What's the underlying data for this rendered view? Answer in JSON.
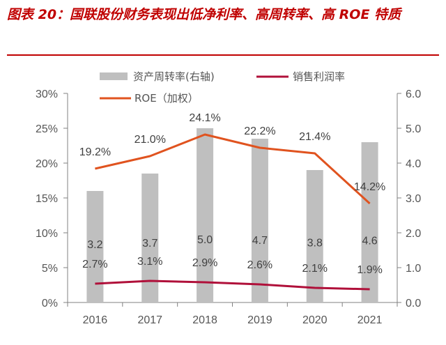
{
  "header": {
    "title": "图表 20：国联股份财务表现出低净利率、高周转率、高 ROE 特质"
  },
  "colors": {
    "title": "#c00000",
    "bars": "#bfbfbf",
    "roe_line": "#e0531f",
    "net_margin_line": "#b0103a",
    "axis": "#808080"
  },
  "chart_data": {
    "type": "bar+line",
    "categories": [
      "2016",
      "2017",
      "2018",
      "2019",
      "2020",
      "2021"
    ],
    "series": [
      {
        "name": "资产周转率(右轴)",
        "type": "bar",
        "axis": "right",
        "values": [
          3.2,
          3.7,
          5.0,
          4.7,
          3.8,
          4.6
        ],
        "labels": [
          "3.2",
          "3.7",
          "5.0",
          "4.7",
          "3.8",
          "4.6"
        ]
      },
      {
        "name": "销售利润率",
        "type": "line",
        "axis": "left",
        "values": [
          2.7,
          3.1,
          2.9,
          2.6,
          2.1,
          1.9
        ],
        "labels": [
          "2.7%",
          "3.1%",
          "2.9%",
          "2.6%",
          "2.1%",
          "1.9%"
        ]
      },
      {
        "name": "ROE（加权）",
        "type": "line",
        "axis": "left",
        "values": [
          19.2,
          21.0,
          24.1,
          22.2,
          21.4,
          14.2
        ],
        "labels": [
          "19.2%",
          "21.0%",
          "24.1%",
          "22.2%",
          "21.4%",
          "14.2%"
        ]
      }
    ],
    "y_left": {
      "min": 0,
      "max": 30,
      "ticks": [
        "0%",
        "5%",
        "10%",
        "15%",
        "20%",
        "25%",
        "30%"
      ]
    },
    "y_right": {
      "min": 0,
      "max": 6,
      "ticks": [
        "0.0",
        "1.0",
        "2.0",
        "3.0",
        "4.0",
        "5.0",
        "6.0"
      ]
    },
    "legend": {
      "position": "top",
      "items": [
        "资产周转率(右轴)",
        "销售利润率",
        "ROE（加权）"
      ]
    },
    "grid": false
  }
}
